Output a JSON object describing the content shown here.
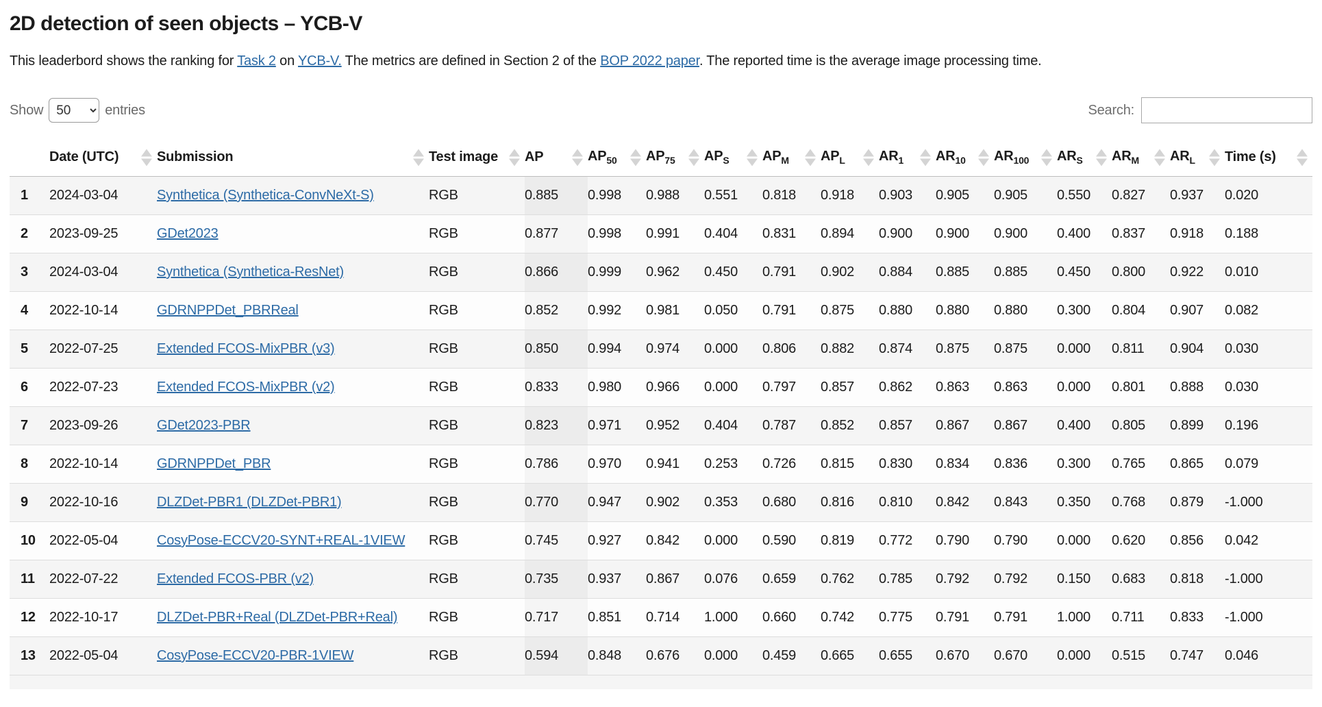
{
  "page": {
    "title": "2D detection of seen objects – YCB-V"
  },
  "intro": {
    "parts": [
      {
        "text": "This leaderbord shows the ranking for "
      },
      {
        "link": "Task 2"
      },
      {
        "text": " on "
      },
      {
        "link": "YCB-V."
      },
      {
        "text": " The metrics are defined in Section 2 of the "
      },
      {
        "link": "BOP 2022 paper"
      },
      {
        "text": ". The reported time is the average image processing time."
      }
    ]
  },
  "controls": {
    "show_label": "Show",
    "entries_label": "entries",
    "page_length_selected": "50",
    "search_label": "Search:",
    "search_value": ""
  },
  "table": {
    "columns": [
      {
        "key": "rank",
        "label": "",
        "sortable": false
      },
      {
        "key": "date",
        "label": "Date (UTC)",
        "sortable": true
      },
      {
        "key": "submission",
        "label": "Submission",
        "sortable": true
      },
      {
        "key": "test",
        "label": "Test image",
        "sortable": true
      },
      {
        "key": "ap",
        "label": "AP",
        "sortable": true,
        "sorted": true
      },
      {
        "key": "ap50",
        "label": "AP",
        "sub": "50",
        "sortable": true
      },
      {
        "key": "ap75",
        "label": "AP",
        "sub": "75",
        "sortable": true
      },
      {
        "key": "aps",
        "label": "AP",
        "sub": "S",
        "sortable": true
      },
      {
        "key": "apm",
        "label": "AP",
        "sub": "M",
        "sortable": true
      },
      {
        "key": "apl",
        "label": "AP",
        "sub": "L",
        "sortable": true
      },
      {
        "key": "ar1",
        "label": "AR",
        "sub": "1",
        "sortable": true
      },
      {
        "key": "ar10",
        "label": "AR",
        "sub": "10",
        "sortable": true
      },
      {
        "key": "ar100",
        "label": "AR",
        "sub": "100",
        "sortable": true
      },
      {
        "key": "ars",
        "label": "AR",
        "sub": "S",
        "sortable": true
      },
      {
        "key": "arm",
        "label": "AR",
        "sub": "M",
        "sortable": true
      },
      {
        "key": "arl",
        "label": "AR",
        "sub": "L",
        "sortable": true
      },
      {
        "key": "time",
        "label": "Time (s)",
        "sortable": true
      }
    ],
    "rows": [
      {
        "rank": "1",
        "date": "2024-03-04",
        "submission": "Synthetica (Synthetica-ConvNeXt-S)",
        "test_image": "RGB",
        "values": [
          "0.885",
          "0.998",
          "0.988",
          "0.551",
          "0.818",
          "0.918",
          "0.903",
          "0.905",
          "0.905",
          "0.550",
          "0.827",
          "0.937",
          "0.020"
        ]
      },
      {
        "rank": "2",
        "date": "2023-09-25",
        "submission": "GDet2023",
        "test_image": "RGB",
        "values": [
          "0.877",
          "0.998",
          "0.991",
          "0.404",
          "0.831",
          "0.894",
          "0.900",
          "0.900",
          "0.900",
          "0.400",
          "0.837",
          "0.918",
          "0.188"
        ]
      },
      {
        "rank": "3",
        "date": "2024-03-04",
        "submission": "Synthetica (Synthetica-ResNet)",
        "test_image": "RGB",
        "values": [
          "0.866",
          "0.999",
          "0.962",
          "0.450",
          "0.791",
          "0.902",
          "0.884",
          "0.885",
          "0.885",
          "0.450",
          "0.800",
          "0.922",
          "0.010"
        ]
      },
      {
        "rank": "4",
        "date": "2022-10-14",
        "submission": "GDRNPPDet_PBRReal",
        "test_image": "RGB",
        "values": [
          "0.852",
          "0.992",
          "0.981",
          "0.050",
          "0.791",
          "0.875",
          "0.880",
          "0.880",
          "0.880",
          "0.300",
          "0.804",
          "0.907",
          "0.082"
        ]
      },
      {
        "rank": "5",
        "date": "2022-07-25",
        "submission": "Extended FCOS-MixPBR (v3)",
        "test_image": "RGB",
        "values": [
          "0.850",
          "0.994",
          "0.974",
          "0.000",
          "0.806",
          "0.882",
          "0.874",
          "0.875",
          "0.875",
          "0.000",
          "0.811",
          "0.904",
          "0.030"
        ]
      },
      {
        "rank": "6",
        "date": "2022-07-23",
        "submission": "Extended FCOS-MixPBR (v2)",
        "test_image": "RGB",
        "values": [
          "0.833",
          "0.980",
          "0.966",
          "0.000",
          "0.797",
          "0.857",
          "0.862",
          "0.863",
          "0.863",
          "0.000",
          "0.801",
          "0.888",
          "0.030"
        ]
      },
      {
        "rank": "7",
        "date": "2023-09-26",
        "submission": "GDet2023-PBR",
        "test_image": "RGB",
        "values": [
          "0.823",
          "0.971",
          "0.952",
          "0.404",
          "0.787",
          "0.852",
          "0.857",
          "0.867",
          "0.867",
          "0.400",
          "0.805",
          "0.899",
          "0.196"
        ]
      },
      {
        "rank": "8",
        "date": "2022-10-14",
        "submission": "GDRNPPDet_PBR",
        "test_image": "RGB",
        "values": [
          "0.786",
          "0.970",
          "0.941",
          "0.253",
          "0.726",
          "0.815",
          "0.830",
          "0.834",
          "0.836",
          "0.300",
          "0.765",
          "0.865",
          "0.079"
        ]
      },
      {
        "rank": "9",
        "date": "2022-10-16",
        "submission": "DLZDet-PBR1 (DLZDet-PBR1)",
        "test_image": "RGB",
        "values": [
          "0.770",
          "0.947",
          "0.902",
          "0.353",
          "0.680",
          "0.816",
          "0.810",
          "0.842",
          "0.843",
          "0.350",
          "0.768",
          "0.879",
          "-1.000"
        ]
      },
      {
        "rank": "10",
        "date": "2022-05-04",
        "submission": "CosyPose-ECCV20-SYNT+REAL-1VIEW",
        "test_image": "RGB",
        "values": [
          "0.745",
          "0.927",
          "0.842",
          "0.000",
          "0.590",
          "0.819",
          "0.772",
          "0.790",
          "0.790",
          "0.000",
          "0.620",
          "0.856",
          "0.042"
        ]
      },
      {
        "rank": "11",
        "date": "2022-07-22",
        "submission": "Extended FCOS-PBR (v2)",
        "test_image": "RGB",
        "values": [
          "0.735",
          "0.937",
          "0.867",
          "0.076",
          "0.659",
          "0.762",
          "0.785",
          "0.792",
          "0.792",
          "0.150",
          "0.683",
          "0.818",
          "-1.000"
        ]
      },
      {
        "rank": "12",
        "date": "2022-10-17",
        "submission": "DLZDet-PBR+Real (DLZDet-PBR+Real)",
        "test_image": "RGB",
        "values": [
          "0.717",
          "0.851",
          "0.714",
          "1.000",
          "0.660",
          "0.742",
          "0.775",
          "0.791",
          "0.791",
          "1.000",
          "0.711",
          "0.833",
          "-1.000"
        ]
      },
      {
        "rank": "13",
        "date": "2022-05-04",
        "submission": "CosyPose-ECCV20-PBR-1VIEW",
        "test_image": "RGB",
        "values": [
          "0.594",
          "0.848",
          "0.676",
          "0.000",
          "0.459",
          "0.665",
          "0.655",
          "0.670",
          "0.670",
          "0.000",
          "0.515",
          "0.747",
          "0.046"
        ]
      }
    ]
  },
  "colors": {
    "link": "#2d6ba6",
    "row_stripe": "#f5f5f5",
    "sorted_column_stripe": "#ececec",
    "sort_icon": "#d4d4d4"
  }
}
